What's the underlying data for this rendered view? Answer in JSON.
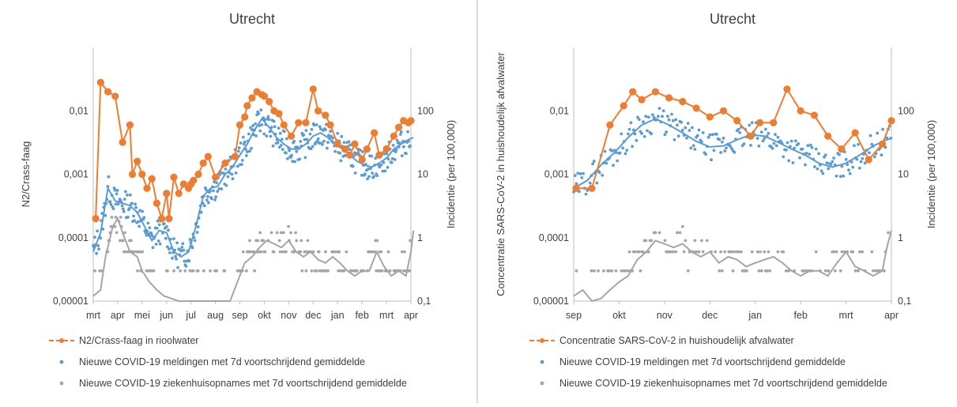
{
  "chart_data": [
    {
      "type": "line",
      "title": "Utrecht",
      "ylabel": "N2/Crass-faag",
      "y2label": "Incidentie (per 100,000)",
      "y_scale": "log",
      "ylim": [
        1e-05,
        0.1
      ],
      "y_ticks": [
        "0,00001",
        "0,0001",
        "0,001",
        "0,01"
      ],
      "y2_scale": "log",
      "y2lim": [
        0.1,
        1000
      ],
      "y2_ticks": [
        "0,1",
        "1",
        "10",
        "100"
      ],
      "x_ticks": [
        "mrt",
        "apr",
        "mei",
        "jun",
        "jul",
        "aug",
        "sep",
        "okt",
        "nov",
        "dec",
        "jan",
        "feb",
        "mrt",
        "apr"
      ],
      "grid": false,
      "legend_position": "bottom",
      "series": [
        {
          "name": "N2/Crass-faag in rioolwater",
          "color": "#ed7d31",
          "axis": "left",
          "style": "line-markers",
          "x": [
            0.1,
            0.3,
            0.6,
            0.9,
            1.2,
            1.5,
            1.6,
            1.8,
            2.0,
            2.2,
            2.4,
            2.6,
            2.8,
            3.0,
            3.1,
            3.3,
            3.5,
            3.7,
            3.9,
            4.0,
            4.1,
            4.3,
            4.5,
            4.7,
            5.0,
            5.4,
            5.8,
            6.0,
            6.2,
            6.3,
            6.5,
            6.7,
            6.9,
            7.0,
            7.2,
            7.4,
            7.6,
            7.8,
            8.1,
            8.4,
            8.7,
            9.0,
            9.2,
            9.5,
            9.7,
            10.0,
            10.3,
            10.5,
            10.7,
            11.0,
            11.2,
            11.5,
            11.7,
            12.0,
            12.3,
            12.5,
            12.7,
            12.9,
            13.0
          ],
          "y": [
            0.0002,
            0.028,
            0.02,
            0.017,
            0.0032,
            0.006,
            0.001,
            0.0016,
            0.001,
            0.0006,
            0.00085,
            0.00035,
            0.0002,
            0.0005,
            0.0002,
            0.0009,
            0.0005,
            0.0007,
            0.0006,
            0.0007,
            0.0008,
            0.001,
            0.0015,
            0.0019,
            0.0009,
            0.0015,
            0.0019,
            0.006,
            0.008,
            0.012,
            0.016,
            0.02,
            0.018,
            0.017,
            0.014,
            0.01,
            0.009,
            0.006,
            0.004,
            0.0065,
            0.0065,
            0.022,
            0.01,
            0.0085,
            0.006,
            0.003,
            0.0025,
            0.002,
            0.003,
            0.0017,
            0.0025,
            0.0045,
            0.002,
            0.0025,
            0.004,
            0.0055,
            0.007,
            0.0065,
            0.007
          ]
        },
        {
          "name": "Nieuwe COVID-19 meldingen met 7d voortschrijdend gemiddelde",
          "color": "#5b9bd5",
          "axis": "right",
          "style": "scatter-with-trend",
          "trend_x": [
            0.0,
            0.3,
            0.6,
            0.9,
            1.2,
            1.5,
            1.8,
            2.1,
            2.4,
            2.7,
            3.0,
            3.3,
            3.6,
            3.9,
            4.2,
            4.5,
            4.8,
            5.1,
            5.4,
            5.7,
            6.0,
            6.3,
            6.6,
            6.9,
            7.2,
            7.5,
            7.8,
            8.1,
            8.4,
            8.7,
            9.0,
            9.3,
            9.6,
            9.9,
            10.2,
            10.5,
            10.8,
            11.1,
            11.4,
            11.7,
            12.0,
            12.3,
            12.6,
            12.9,
            13.1
          ],
          "trend_y": [
            0.6,
            1.2,
            6.0,
            3.8,
            3.5,
            3.2,
            2.5,
            1.5,
            0.9,
            1.3,
            1.2,
            0.6,
            0.5,
            0.6,
            1.5,
            4.5,
            6.0,
            6.5,
            10.0,
            13.0,
            20.0,
            30.0,
            50.0,
            75.0,
            55.0,
            38.0,
            30.0,
            25.0,
            25.0,
            30.0,
            40.0,
            45.0,
            38.0,
            30.0,
            25.0,
            20.0,
            16.0,
            14.0,
            13.0,
            15.0,
            18.0,
            25.0,
            30.0,
            35.0,
            38.0
          ]
        },
        {
          "name": "Nieuwe COVID-19 ziekenhuisopnames met 7d voortschrijdend gemiddelde",
          "color": "#a5a5a5",
          "axis": "right",
          "style": "scatter-with-trend",
          "trend_x": [
            0.0,
            0.3,
            0.5,
            0.8,
            1.0,
            1.2,
            1.5,
            1.8,
            2.0,
            2.3,
            2.6,
            2.9,
            3.2,
            3.5,
            3.8,
            4.1,
            4.4,
            4.7,
            5.0,
            5.3,
            5.6,
            5.9,
            6.2,
            6.5,
            6.8,
            7.1,
            7.4,
            7.7,
            8.0,
            8.3,
            8.6,
            8.9,
            9.2,
            9.5,
            9.8,
            10.1,
            10.4,
            10.7,
            11.0,
            11.3,
            11.6,
            11.9,
            12.2,
            12.5,
            12.8,
            13.0,
            13.1
          ],
          "trend_y": [
            0.12,
            0.15,
            0.5,
            1.5,
            2.0,
            1.2,
            0.6,
            0.5,
            0.3,
            0.2,
            0.15,
            0.12,
            0.11,
            0.1,
            0.1,
            0.1,
            0.1,
            0.1,
            0.1,
            0.1,
            0.1,
            0.2,
            0.4,
            0.5,
            0.7,
            0.9,
            0.8,
            0.7,
            0.9,
            0.6,
            0.5,
            0.6,
            0.45,
            0.4,
            0.5,
            0.4,
            0.3,
            0.25,
            0.3,
            0.3,
            0.6,
            0.35,
            0.25,
            0.3,
            0.25,
            0.6,
            1.3
          ]
        }
      ]
    },
    {
      "type": "line",
      "title": "Utrecht",
      "ylabel": "Concentratie SARS-CoV-2 in huishoudelijk afvalwater",
      "y2label": "Incidentie (per 100,000)",
      "y_scale": "log",
      "ylim": [
        1e-05,
        0.1
      ],
      "y_ticks": [
        "0,00001",
        "0,0001",
        "0,001",
        "0,01"
      ],
      "y2_scale": "log",
      "y2lim": [
        0.1,
        1000
      ],
      "y2_ticks": [
        "0,1",
        "1",
        "10",
        "100"
      ],
      "x_ticks": [
        "sep",
        "okt",
        "nov",
        "dec",
        "jan",
        "feb",
        "mrt",
        "apr"
      ],
      "grid": false,
      "legend_position": "bottom",
      "series": [
        {
          "name": "Concentratie SARS-CoV-2 in huishoudelijk afvalwater",
          "color": "#ed7d31",
          "axis": "left",
          "style": "line-markers",
          "x": [
            0.05,
            0.4,
            0.8,
            1.1,
            1.3,
            1.5,
            1.8,
            2.1,
            2.4,
            2.7,
            3.0,
            3.3,
            3.6,
            3.9,
            4.1,
            4.4,
            4.7,
            5.0,
            5.3,
            5.6,
            5.9,
            6.2,
            6.5,
            6.8,
            7.0
          ],
          "y": [
            0.0006,
            0.0006,
            0.006,
            0.012,
            0.02,
            0.015,
            0.02,
            0.016,
            0.014,
            0.011,
            0.008,
            0.01,
            0.007,
            0.004,
            0.0065,
            0.0065,
            0.022,
            0.01,
            0.0085,
            0.004,
            0.0025,
            0.0045,
            0.0017,
            0.003,
            0.007
          ]
        },
        {
          "name": "Nieuwe COVID-19 meldingen met 7d voortschrijdend gemiddelde",
          "color": "#5b9bd5",
          "axis": "right",
          "style": "scatter-with-trend",
          "trend_x": [
            0.0,
            0.3,
            0.6,
            0.9,
            1.2,
            1.5,
            1.8,
            2.1,
            2.4,
            2.7,
            3.0,
            3.3,
            3.6,
            3.9,
            4.2,
            4.5,
            4.8,
            5.1,
            5.4,
            5.7,
            6.0,
            6.3,
            6.6,
            6.9,
            7.0
          ],
          "trend_y": [
            6.0,
            8.0,
            14.0,
            22.0,
            38.0,
            60.0,
            75.0,
            60.0,
            45.0,
            33.0,
            27.0,
            28.0,
            35.0,
            42.0,
            40.0,
            32.0,
            25.0,
            20.0,
            15.0,
            13.0,
            15.0,
            20.0,
            28.0,
            35.0,
            37.0
          ]
        },
        {
          "name": "Nieuwe COVID-19 ziekenhuisopnames met 7d voortschrijdend gemiddelde",
          "color": "#a5a5a5",
          "axis": "right",
          "style": "scatter-with-trend",
          "trend_x": [
            0.0,
            0.2,
            0.4,
            0.6,
            0.8,
            1.0,
            1.2,
            1.4,
            1.6,
            1.8,
            2.0,
            2.2,
            2.4,
            2.6,
            2.8,
            3.0,
            3.2,
            3.4,
            3.6,
            3.8,
            4.0,
            4.2,
            4.4,
            4.6,
            4.8,
            5.0,
            5.2,
            5.4,
            5.6,
            5.8,
            6.0,
            6.2,
            6.4,
            6.6,
            6.8,
            6.9,
            7.0
          ],
          "trend_y": [
            0.12,
            0.15,
            0.1,
            0.11,
            0.15,
            0.2,
            0.25,
            0.45,
            0.6,
            0.9,
            0.8,
            0.7,
            0.8,
            0.6,
            0.5,
            0.6,
            0.4,
            0.5,
            0.45,
            0.35,
            0.4,
            0.45,
            0.5,
            0.4,
            0.3,
            0.25,
            0.3,
            0.3,
            0.25,
            0.4,
            0.6,
            0.35,
            0.3,
            0.25,
            0.3,
            0.7,
            1.3
          ]
        }
      ]
    }
  ]
}
